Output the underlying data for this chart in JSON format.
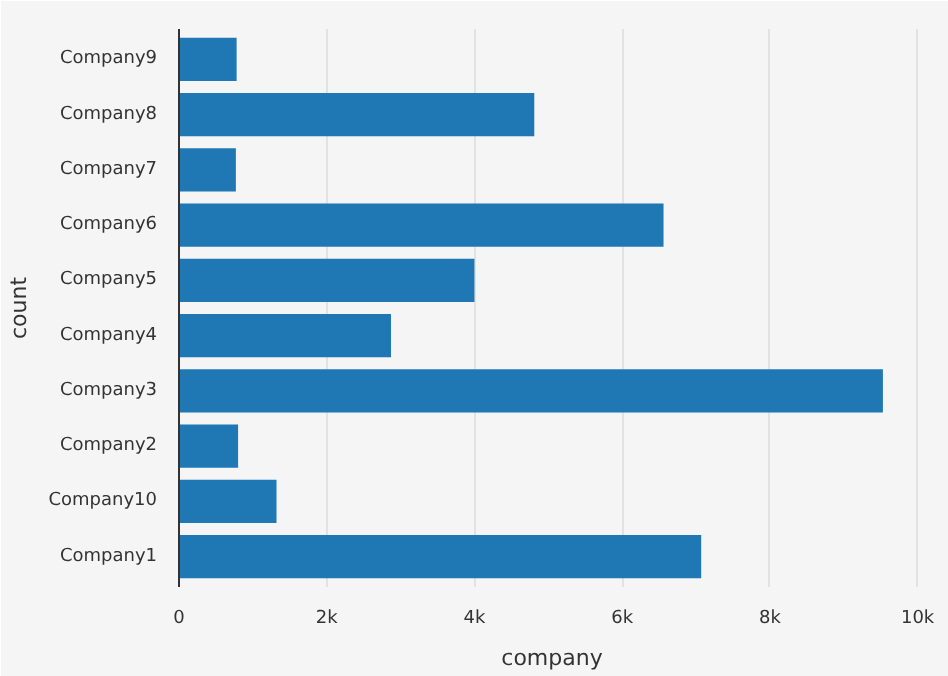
{
  "chart_data": {
    "type": "bar",
    "orientation": "horizontal",
    "xlabel": "company",
    "ylabel": "count",
    "categories": [
      "Company9",
      "Company8",
      "Company7",
      "Company6",
      "Company5",
      "Company4",
      "Company3",
      "Company2",
      "Company10",
      "Company1"
    ],
    "values": [
      780,
      4810,
      770,
      6560,
      4000,
      2870,
      9530,
      800,
      1320,
      7070
    ],
    "color": "#1f77b4",
    "xlim": [
      0,
      10100
    ],
    "xticks": [
      0,
      {
        "value": 2000,
        "label": "2k"
      },
      {
        "value": 4000,
        "label": "4k"
      },
      {
        "value": 6000,
        "label": "6k"
      },
      {
        "value": 8000,
        "label": "8k"
      },
      {
        "value": 10000,
        "label": "10k"
      }
    ],
    "grid": "x"
  }
}
